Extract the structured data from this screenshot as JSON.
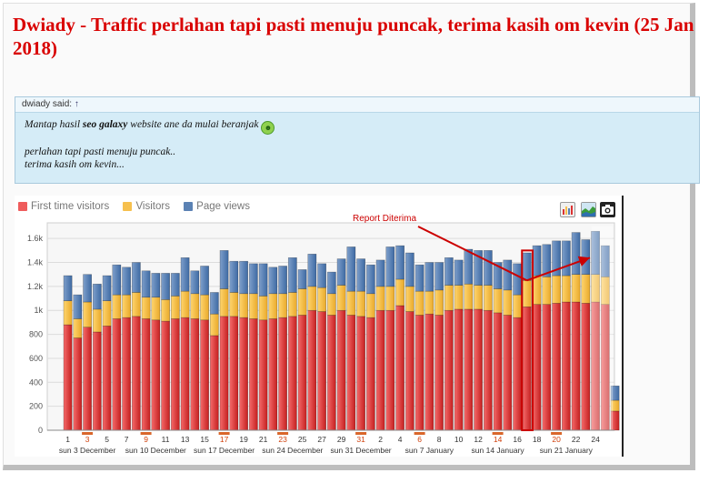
{
  "post": {
    "title": "Dwiady - Traffic perlahan tapi pasti menuju puncak, terima kasih om kevin (25 Jan 2018)"
  },
  "quote": {
    "author_label": "dwiady said:",
    "arrow_icon": "↑",
    "line1_prefix": "Mantap hasil ",
    "line1_bold": "seo galaxy",
    "line1_suffix": " website ane da mulai beranjak",
    "line2": "perlahan tapi pasti menuju puncak..",
    "line3": "terima kasih om kevin..."
  },
  "legend": [
    {
      "label": "First time visitors",
      "color": "#ef5c5c"
    },
    {
      "label": "Visitors",
      "color": "#f6c04e"
    },
    {
      "label": "Page views",
      "color": "#5b82b4"
    }
  ],
  "tools": {
    "icons": [
      "bar-chart-icon",
      "area-chart-icon",
      "camera-icon"
    ]
  },
  "annotation": {
    "text": "Report Diterima",
    "color": "#cc0000"
  },
  "chart_data": {
    "type": "bar",
    "stacked": true,
    "y_ticks": [
      "0",
      "200",
      "400",
      "600",
      "800",
      "1k",
      "1.2k",
      "1.4k",
      "1.6k"
    ],
    "ylim": [
      0,
      1700
    ],
    "x_ticks": [
      {
        "label": "1",
        "idx": 0,
        "red": false
      },
      {
        "label": "3",
        "idx": 2,
        "red": true
      },
      {
        "label": "5",
        "idx": 4,
        "red": false
      },
      {
        "label": "7",
        "idx": 6,
        "red": false
      },
      {
        "label": "9",
        "idx": 8,
        "red": true
      },
      {
        "label": "11",
        "idx": 10,
        "red": false
      },
      {
        "label": "13",
        "idx": 12,
        "red": false
      },
      {
        "label": "15",
        "idx": 14,
        "red": false
      },
      {
        "label": "17",
        "idx": 16,
        "red": true
      },
      {
        "label": "19",
        "idx": 18,
        "red": false
      },
      {
        "label": "21",
        "idx": 20,
        "red": false
      },
      {
        "label": "23",
        "idx": 22,
        "red": true
      },
      {
        "label": "25",
        "idx": 24,
        "red": false
      },
      {
        "label": "27",
        "idx": 26,
        "red": false
      },
      {
        "label": "29",
        "idx": 28,
        "red": false
      },
      {
        "label": "31",
        "idx": 30,
        "red": true
      },
      {
        "label": "2",
        "idx": 32,
        "red": false
      },
      {
        "label": "4",
        "idx": 34,
        "red": false
      },
      {
        "label": "6",
        "idx": 36,
        "red": true
      },
      {
        "label": "8",
        "idx": 38,
        "red": false
      },
      {
        "label": "10",
        "idx": 40,
        "red": false
      },
      {
        "label": "12",
        "idx": 42,
        "red": false
      },
      {
        "label": "14",
        "idx": 44,
        "red": true
      },
      {
        "label": "16",
        "idx": 46,
        "red": false
      },
      {
        "label": "18",
        "idx": 48,
        "red": false
      },
      {
        "label": "20",
        "idx": 50,
        "red": true
      },
      {
        "label": "22",
        "idx": 52,
        "red": false
      },
      {
        "label": "24",
        "idx": 54,
        "red": false
      }
    ],
    "week_labels": [
      {
        "label": "sun 3 December",
        "idx": 2
      },
      {
        "label": "sun 10 December",
        "idx": 9
      },
      {
        "label": "sun 17 December",
        "idx": 16
      },
      {
        "label": "sun 24 December",
        "idx": 23
      },
      {
        "label": "sun 31 December",
        "idx": 30
      },
      {
        "label": "sun 7 January",
        "idx": 37
      },
      {
        "label": "sun 14 January",
        "idx": 44
      },
      {
        "label": "sun 21 January",
        "idx": 51
      }
    ],
    "series": [
      {
        "name": "First time visitors",
        "color": "#ef5c5c",
        "values": [
          880,
          770,
          860,
          820,
          870,
          930,
          940,
          950,
          930,
          920,
          910,
          930,
          940,
          930,
          920,
          790,
          950,
          950,
          940,
          930,
          920,
          930,
          940,
          950,
          960,
          1000,
          990,
          960,
          1000,
          960,
          950,
          940,
          1000,
          1000,
          1040,
          990,
          960,
          970,
          960,
          1000,
          1010,
          1010,
          1010,
          1000,
          980,
          960,
          940,
          1030,
          1050,
          1050,
          1060,
          1070,
          1070,
          1060,
          1070,
          1050,
          160
        ]
      },
      {
        "name": "Visitors",
        "color": "#f6c04e",
        "values": [
          200,
          160,
          210,
          190,
          210,
          200,
          190,
          200,
          180,
          190,
          180,
          190,
          220,
          210,
          210,
          180,
          230,
          200,
          200,
          210,
          200,
          210,
          200,
          200,
          220,
          200,
          200,
          180,
          210,
          200,
          210,
          200,
          200,
          200,
          220,
          210,
          200,
          190,
          210,
          210,
          200,
          210,
          200,
          210,
          200,
          210,
          190,
          220,
          240,
          230,
          230,
          220,
          230,
          240,
          230,
          230,
          90
        ]
      },
      {
        "name": "Page views",
        "color": "#5b82b4",
        "values": [
          210,
          200,
          230,
          210,
          210,
          250,
          230,
          250,
          220,
          200,
          220,
          190,
          280,
          190,
          240,
          180,
          320,
          260,
          270,
          250,
          270,
          220,
          230,
          290,
          160,
          270,
          200,
          180,
          220,
          370,
          270,
          240,
          220,
          330,
          280,
          280,
          220,
          240,
          230,
          230,
          210,
          290,
          290,
          290,
          220,
          250,
          260,
          230,
          250,
          270,
          290,
          290,
          350,
          290,
          360,
          260,
          120
        ]
      }
    ]
  }
}
